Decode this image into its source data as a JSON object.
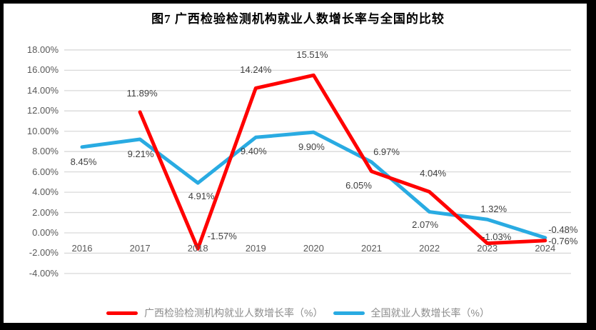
{
  "title": "图7 广西检验检测机构就业人数增长率与全国的比较",
  "colors": {
    "frame": "#000000",
    "background": "#FFFFFF",
    "grid": "#D9D9D9",
    "axis_text": "#595959",
    "data_label_text": "#3F3F3F",
    "legend_text": "#8C8C8C",
    "series_guangxi": "#FF0000",
    "series_national": "#29ABE2"
  },
  "chart_data": {
    "type": "line",
    "title": "图7 广西检验检测机构就业人数增长率与全国的比较",
    "categories": [
      "2016",
      "2017",
      "2018",
      "2019",
      "2020",
      "2021",
      "2022",
      "2023",
      "2024"
    ],
    "xlabel": "",
    "ylabel": "",
    "ylim": [
      -4,
      18
    ],
    "grid": true,
    "legend_position": "bottom",
    "yticks": [
      {
        "v": 18,
        "label": "18.00%"
      },
      {
        "v": 16,
        "label": "16.00%"
      },
      {
        "v": 14,
        "label": "14.00%"
      },
      {
        "v": 12,
        "label": "12.00%"
      },
      {
        "v": 10,
        "label": "10.00%"
      },
      {
        "v": 8,
        "label": "8.00%"
      },
      {
        "v": 6,
        "label": "6.00%"
      },
      {
        "v": 4,
        "label": "4.00%"
      },
      {
        "v": 2,
        "label": "2.00%"
      },
      {
        "v": 0,
        "label": "0.00%"
      },
      {
        "v": -2,
        "label": "-2.00%"
      },
      {
        "v": -4,
        "label": "-4.00%"
      }
    ],
    "series": [
      {
        "id": "national",
        "name": "全国就业人数增长率（%）",
        "color": "#29ABE2",
        "values": [
          8.45,
          9.21,
          4.91,
          9.4,
          9.9,
          6.97,
          2.07,
          1.32,
          -0.48
        ],
        "labels": [
          {
            "text": "8.45%",
            "dx": 2,
            "dy": 21
          },
          {
            "text": "9.21%",
            "dx": 1,
            "dy": 21
          },
          {
            "text": "4.91%",
            "dx": 5,
            "dy": 19
          },
          {
            "text": "9.40%",
            "dx": -3,
            "dy": 20
          },
          {
            "text": "9.90%",
            "dx": -3,
            "dy": 21
          },
          {
            "text": "6.97%",
            "dx": 21,
            "dy": -14
          },
          {
            "text": "2.07%",
            "dx": -6,
            "dy": 18
          },
          {
            "text": "1.32%",
            "dx": 9,
            "dy": -14
          },
          {
            "text": "-0.48%",
            "dx": 25,
            "dy": -11
          }
        ]
      },
      {
        "id": "guangxi",
        "name": "广西检验检测机构就业人数增长率（%）",
        "color": "#FF0000",
        "values": [
          null,
          11.89,
          -1.57,
          14.24,
          15.51,
          6.05,
          4.04,
          -1.03,
          -0.76
        ],
        "labels": [
          null,
          {
            "text": "11.89%",
            "dx": 3,
            "dy": -26
          },
          {
            "text": "-1.57%",
            "dx": 34,
            "dy": -17
          },
          {
            "text": "14.24%",
            "dx": 0,
            "dy": -25
          },
          {
            "text": "15.51%",
            "dx": -2,
            "dy": -28
          },
          {
            "text": "6.05%",
            "dx": -18,
            "dy": 20
          },
          {
            "text": "4.04%",
            "dx": 5,
            "dy": -26
          },
          {
            "text": "-1.03%",
            "dx": 13,
            "dy": -9
          },
          {
            "text": "-0.76%",
            "dx": 25,
            "dy": 1
          }
        ]
      }
    ]
  },
  "legend": {
    "items": [
      {
        "series_id": "guangxi",
        "label": "广西检验检测机构就业人数增长率（%）",
        "color": "#FF0000"
      },
      {
        "series_id": "national",
        "label": "全国就业人数增长率（%）",
        "color": "#29ABE2"
      }
    ]
  }
}
